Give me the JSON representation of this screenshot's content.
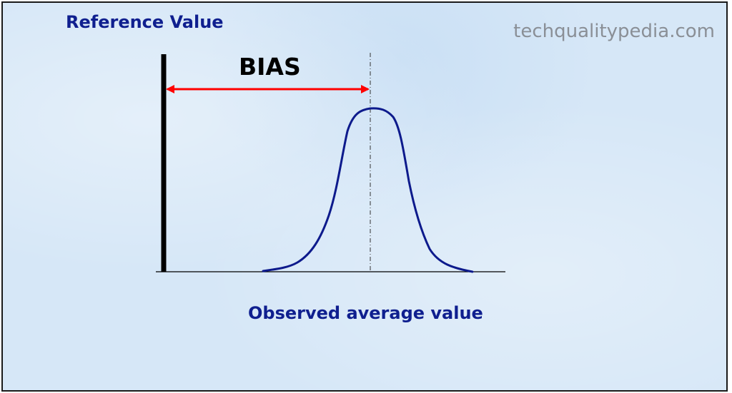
{
  "diagram": {
    "reference_label": "Reference Value",
    "bias_label": "BIAS",
    "observed_label": "Observed average value",
    "watermark": "techqualitypedia.com",
    "colors": {
      "background": "#d6e7f7",
      "label_text": "#0f1f8f",
      "curve": "#0d1a8c",
      "arrow": "#ff0000",
      "reference_line": "#000000",
      "baseline": "#000000",
      "watermark": "#8a8f96"
    },
    "elements": [
      "reference-line",
      "bias-arrow",
      "mean-dashed-line",
      "normal-curve",
      "baseline"
    ]
  }
}
